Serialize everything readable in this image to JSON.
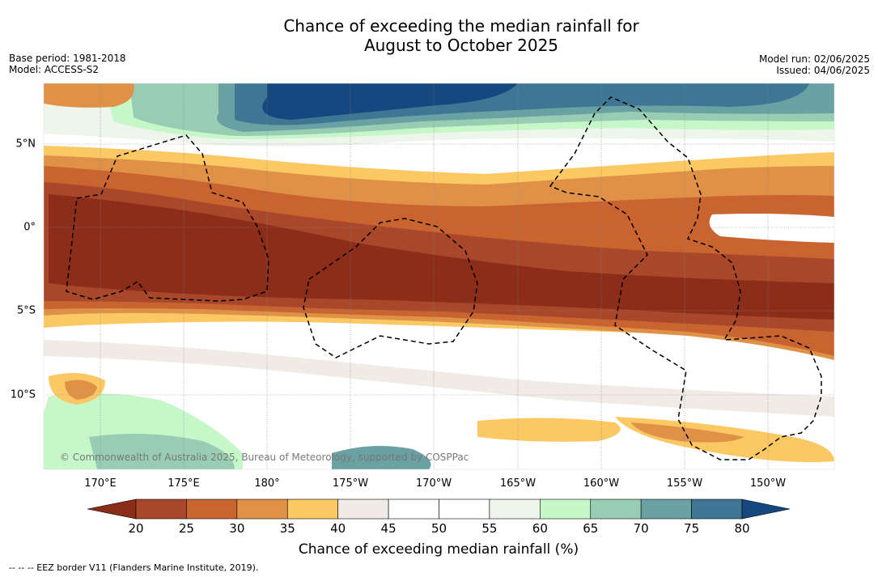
{
  "title_line1": "Chance of exceeding the median rainfall for",
  "title_line2": "August to October 2025",
  "meta_left": {
    "base_period": "Base period: 1981-2018",
    "model": "Model: ACCESS-S2"
  },
  "meta_right": {
    "model_run": "Model run: 02/06/2025",
    "issued": "Issued: 04/06/2025"
  },
  "copyright": "© Commonwealth of Australia 2025, Bureau of Meteorology, supported by COSPPac",
  "lon_labels": [
    "170°E",
    "175°E",
    "180°",
    "175°W",
    "170°W",
    "165°W",
    "160°W",
    "155°W",
    "150°W"
  ],
  "lat_labels": [
    "5°N",
    "0°",
    "5°S",
    "10°S"
  ],
  "colorbar": {
    "label": "Chance of exceeding median rainfall (%)",
    "ticks": [
      "20",
      "25",
      "30",
      "35",
      "40",
      "45",
      "50",
      "55",
      "60",
      "65",
      "70",
      "75",
      "80"
    ],
    "under_color": "#8c2d1a",
    "over_color": "#16477f",
    "colors": [
      "#a8472a",
      "#c9632f",
      "#df9247",
      "#fcc863",
      "#f0ece5",
      "#ffffff",
      "#ffffff",
      "#eef6ec",
      "#c6f7c8",
      "#99cdb3",
      "#6aa1a3",
      "#3f7694"
    ]
  },
  "footer": "--  --  -- EEZ border V11 (Flanders Marine Institute, 2019)."
}
